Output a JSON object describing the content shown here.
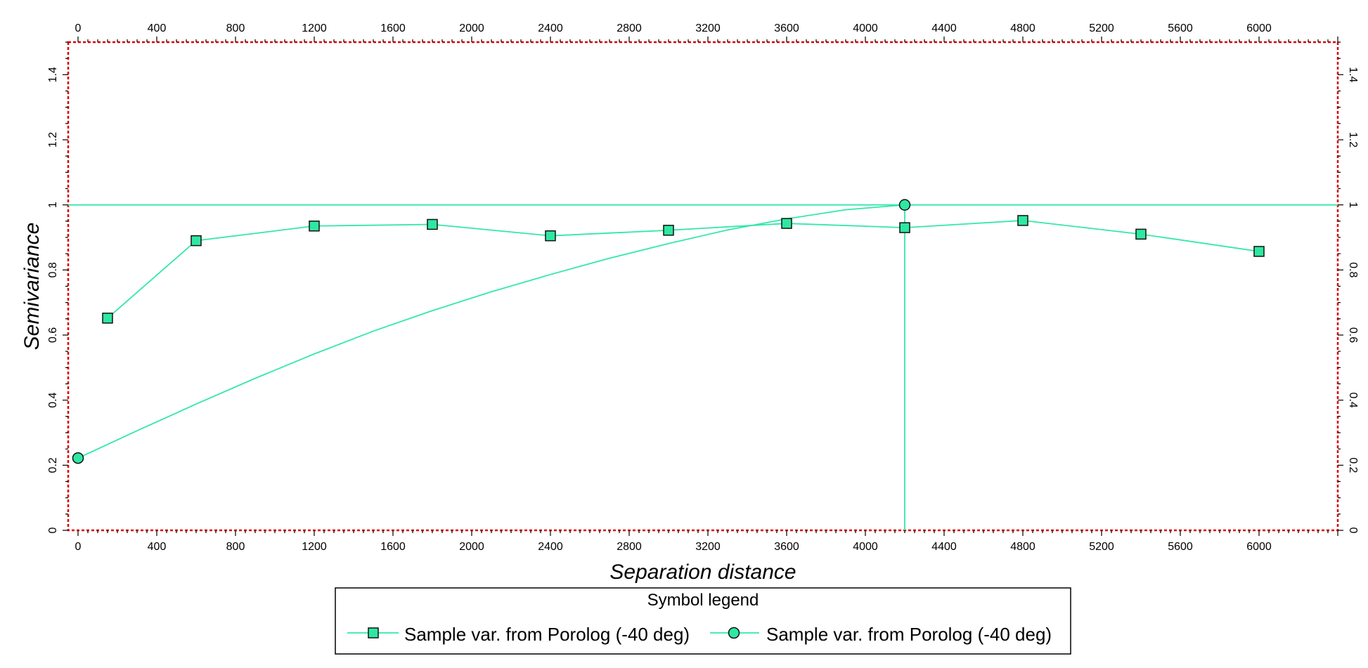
{
  "chart_data": {
    "type": "line",
    "title": "",
    "xlabel": "Separation distance",
    "ylabel": "Semivariance",
    "xlim": [
      -50,
      6400
    ],
    "ylim": [
      0,
      1.5
    ],
    "x_ticks": [
      0,
      400,
      800,
      1200,
      1600,
      2000,
      2400,
      2800,
      3200,
      3600,
      4000,
      4400,
      4800,
      5200,
      5600,
      6000
    ],
    "x_tick_labels": [
      "0",
      "400",
      "800",
      "1200",
      "1600",
      "2000",
      "2400",
      "2800",
      "3200",
      "3600",
      "4000",
      "4400",
      "4800",
      "5200",
      "5600",
      "6000"
    ],
    "y_ticks": [
      0,
      0.2,
      0.4,
      0.6,
      0.8,
      1,
      1.2,
      1.4
    ],
    "y_tick_labels": [
      "0",
      "0.2",
      "0.4",
      "0.6",
      "0.8",
      "1",
      "1.2",
      "1.4"
    ],
    "grid": false,
    "sill": 1,
    "range": 4200,
    "series": [
      {
        "name": "Sample var. from Porolog (-40 deg)",
        "marker": "square",
        "x": [
          150,
          600,
          1200,
          1800,
          2400,
          3000,
          3600,
          4200,
          4800,
          5400,
          6000
        ],
        "y": [
          0.652,
          0.89,
          0.935,
          0.94,
          0.905,
          0.922,
          0.943,
          0.93,
          0.952,
          0.91,
          0.857
        ]
      },
      {
        "name": "Sample var. from Porolog (-40 deg)",
        "marker": "circle",
        "x": [
          0,
          4200
        ],
        "y": [
          0.222,
          1.0
        ]
      }
    ],
    "model_curve": {
      "x": [
        0,
        300,
        600,
        900,
        1200,
        1500,
        1800,
        2100,
        2400,
        2700,
        3000,
        3300,
        3600,
        3900,
        4200
      ],
      "y": [
        0.222,
        0.306,
        0.388,
        0.467,
        0.542,
        0.612,
        0.675,
        0.733,
        0.786,
        0.836,
        0.881,
        0.923,
        0.957,
        0.985,
        1.0
      ]
    },
    "legend": {
      "title": "Symbol legend",
      "position": "bottom-center"
    }
  },
  "colors": {
    "series": "#33e8a8",
    "marker_fill": "#2ee8a2",
    "marker_stroke": "#111111",
    "frame": "#dd0000",
    "axis_text": "#000000"
  }
}
